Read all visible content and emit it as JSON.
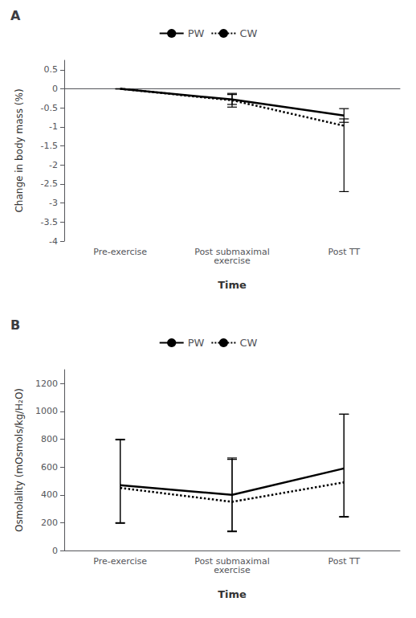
{
  "chart_data": [
    {
      "type": "line",
      "title": "A",
      "categories": [
        "Pre-exercise",
        "Post submaximal\nexercise",
        "Post TT"
      ],
      "series": [
        {
          "name": "PW",
          "color": "#000000",
          "line_style": "solid",
          "values": [
            0.0,
            -0.28,
            -0.7
          ],
          "yerr_lower": [
            0.0,
            0.13,
            0.18
          ],
          "yerr_upper": [
            0.0,
            0.13,
            0.18
          ]
        },
        {
          "name": "CW",
          "color": "#000000",
          "line_style": "dotted",
          "values": [
            0.0,
            -0.3,
            -0.97
          ],
          "yerr_lower": [
            0.0,
            0.18,
            1.73
          ],
          "yerr_upper": [
            0.0,
            0.18,
            0.18
          ]
        }
      ],
      "xlabel": "Time",
      "ylabel": "Change in body mass (%)",
      "ylim": [
        -4.0,
        0.75
      ],
      "yticks": [
        0.5,
        0,
        -0.5,
        -1,
        -1.5,
        -2,
        -2.5,
        -3,
        -3.5,
        -4
      ],
      "grid": false,
      "legend": "top"
    },
    {
      "type": "line",
      "title": "B",
      "categories": [
        "Pre-exercise",
        "Post submaximal\nexercise",
        "Post TT"
      ],
      "series": [
        {
          "name": "PW",
          "color": "#000000",
          "line_style": "solid",
          "values": [
            470,
            400,
            590
          ],
          "yerr_lower": [
            270,
            260,
            350
          ],
          "yerr_upper": [
            330,
            265,
            390
          ]
        },
        {
          "name": "CW",
          "color": "#000000",
          "line_style": "dotted",
          "values": [
            450,
            350,
            490
          ],
          "yerr_lower": [
            255,
            215,
            245
          ],
          "yerr_upper": [
            345,
            305,
            490
          ]
        }
      ],
      "xlabel": "Time",
      "ylabel": "Osmolality (mOsmols/kg/H₂O)",
      "ylim": [
        0,
        1300
      ],
      "yticks": [
        0,
        200,
        400,
        600,
        800,
        1000,
        1200
      ],
      "grid": false,
      "legend": "top"
    }
  ]
}
